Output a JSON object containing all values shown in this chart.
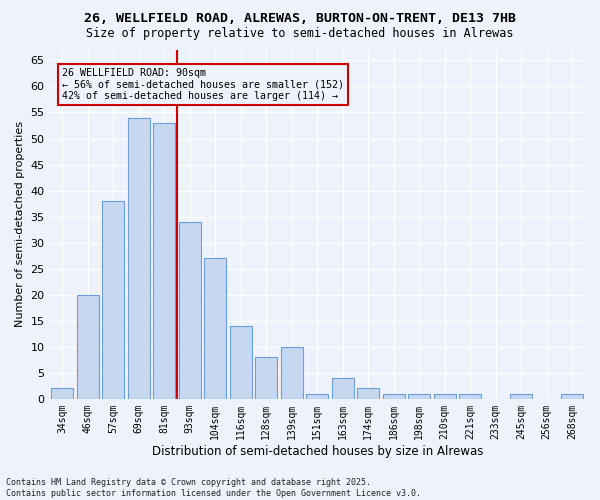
{
  "title1": "26, WELLFIELD ROAD, ALREWAS, BURTON-ON-TRENT, DE13 7HB",
  "title2": "Size of property relative to semi-detached houses in Alrewas",
  "xlabel": "Distribution of semi-detached houses by size in Alrewas",
  "ylabel": "Number of semi-detached properties",
  "bin_labels": [
    "34sqm",
    "46sqm",
    "57sqm",
    "69sqm",
    "81sqm",
    "93sqm",
    "104sqm",
    "116sqm",
    "128sqm",
    "139sqm",
    "151sqm",
    "163sqm",
    "174sqm",
    "186sqm",
    "198sqm",
    "210sqm",
    "221sqm",
    "233sqm",
    "245sqm",
    "256sqm",
    "268sqm"
  ],
  "bin_values": [
    2,
    20,
    38,
    54,
    53,
    34,
    27,
    14,
    8,
    10,
    1,
    4,
    2,
    1,
    1,
    1,
    1,
    0,
    1,
    0,
    1
  ],
  "bar_color": "#c5d8f0",
  "bar_edge_color": "#6a9fd8",
  "vline_color": "#cc0000",
  "annotation_title": "26 WELLFIELD ROAD: 90sqm",
  "annotation_line1": "← 56% of semi-detached houses are smaller (152)",
  "annotation_line2": "42% of semi-detached houses are larger (114) →",
  "ylim": [
    0,
    67
  ],
  "yticks": [
    0,
    5,
    10,
    15,
    20,
    25,
    30,
    35,
    40,
    45,
    50,
    55,
    60,
    65
  ],
  "footer1": "Contains HM Land Registry data © Crown copyright and database right 2025.",
  "footer2": "Contains public sector information licensed under the Open Government Licence v3.0.",
  "bg_color": "#eef2fa"
}
